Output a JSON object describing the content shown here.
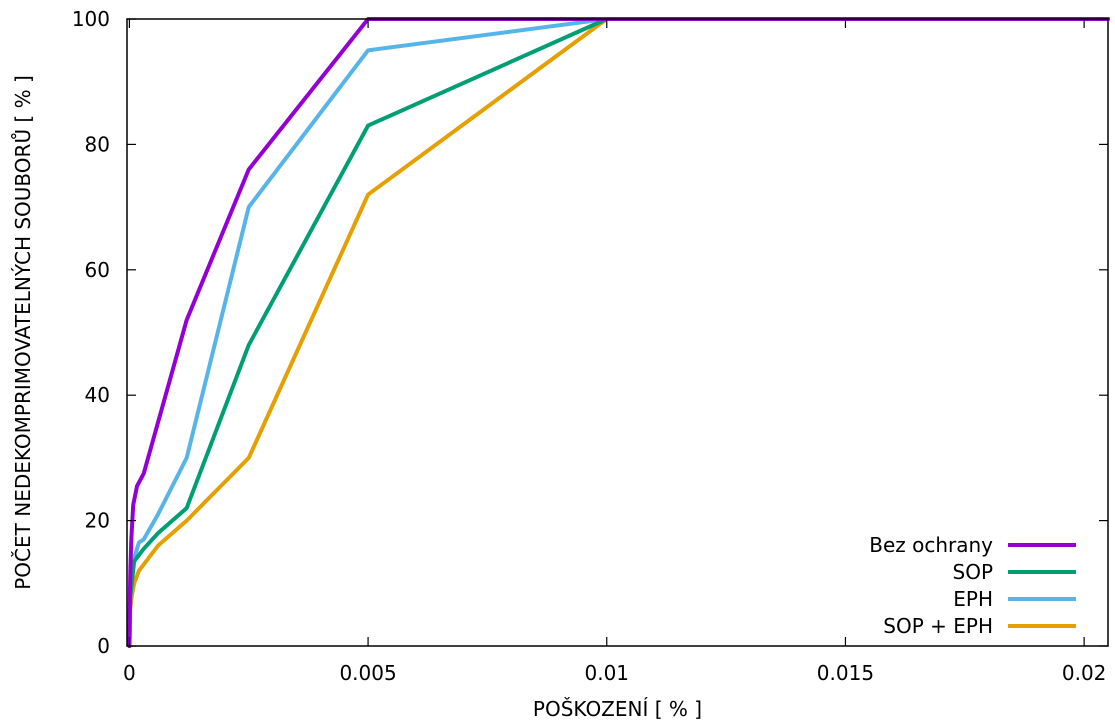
{
  "chart_data": {
    "type": "line",
    "title": "",
    "xlabel": "POŠKOZENÍ [ % ]",
    "ylabel": "POČET NEDEKOMPRIMOVATELNÝCH SOUBORŮ [ % ]",
    "xlim": [
      -5e-05,
      0.0205
    ],
    "ylim": [
      0,
      100
    ],
    "xticks": [
      {
        "value": 0,
        "label": "0"
      },
      {
        "value": 0.005,
        "label": "0.005"
      },
      {
        "value": 0.01,
        "label": "0.01"
      },
      {
        "value": 0.015,
        "label": "0.015"
      },
      {
        "value": 0.02,
        "label": "0.02"
      }
    ],
    "yticks": [
      {
        "value": 0,
        "label": "0"
      },
      {
        "value": 20,
        "label": "20"
      },
      {
        "value": 40,
        "label": "40"
      },
      {
        "value": 60,
        "label": "60"
      },
      {
        "value": 80,
        "label": "80"
      },
      {
        "value": 100,
        "label": "100"
      }
    ],
    "grid": false,
    "legend_position": "bottom-right",
    "series": [
      {
        "name": "Bez ochrany",
        "color": "#9400d3",
        "x": [
          1e-06,
          5e-06,
          1e-05,
          2e-05,
          4e-05,
          8e-05,
          0.00016,
          0.0003,
          0.0012,
          0.0025,
          0.005,
          0.0205
        ],
        "y": [
          0,
          4,
          8,
          12,
          17,
          22.5,
          25.5,
          27.5,
          52,
          76,
          100,
          100
        ]
      },
      {
        "name": "SOP",
        "color": "#009e73",
        "x": [
          1e-06,
          5e-06,
          1e-05,
          2e-05,
          5e-05,
          0.0001,
          0.0002,
          0.0003,
          0.0006,
          0.0012,
          0.0025,
          0.005,
          0.01,
          0.0205
        ],
        "y": [
          0,
          2,
          5,
          8,
          10,
          13.5,
          14.5,
          15.5,
          18,
          22,
          48,
          83,
          100,
          100
        ]
      },
      {
        "name": "EPH",
        "color": "#56b4e9",
        "x": [
          1e-06,
          5e-06,
          1e-05,
          2e-05,
          5e-05,
          0.0001,
          0.0002,
          0.0003,
          0.0006,
          0.0012,
          0.0025,
          0.005,
          0.01,
          0.0205
        ],
        "y": [
          0,
          3,
          6,
          9,
          11.5,
          14,
          16.5,
          17,
          21,
          30,
          70,
          95,
          100,
          100
        ]
      },
      {
        "name": "SOP + EPH",
        "color": "#e69f00",
        "x": [
          1e-06,
          5e-06,
          1e-05,
          2e-05,
          5e-05,
          0.0001,
          0.0002,
          0.0004,
          0.0006,
          0.0012,
          0.0025,
          0.005,
          0.01,
          0.0205
        ],
        "y": [
          0,
          1,
          3,
          6,
          8,
          10,
          12,
          14,
          16,
          20,
          30,
          72,
          100,
          100
        ]
      }
    ]
  }
}
